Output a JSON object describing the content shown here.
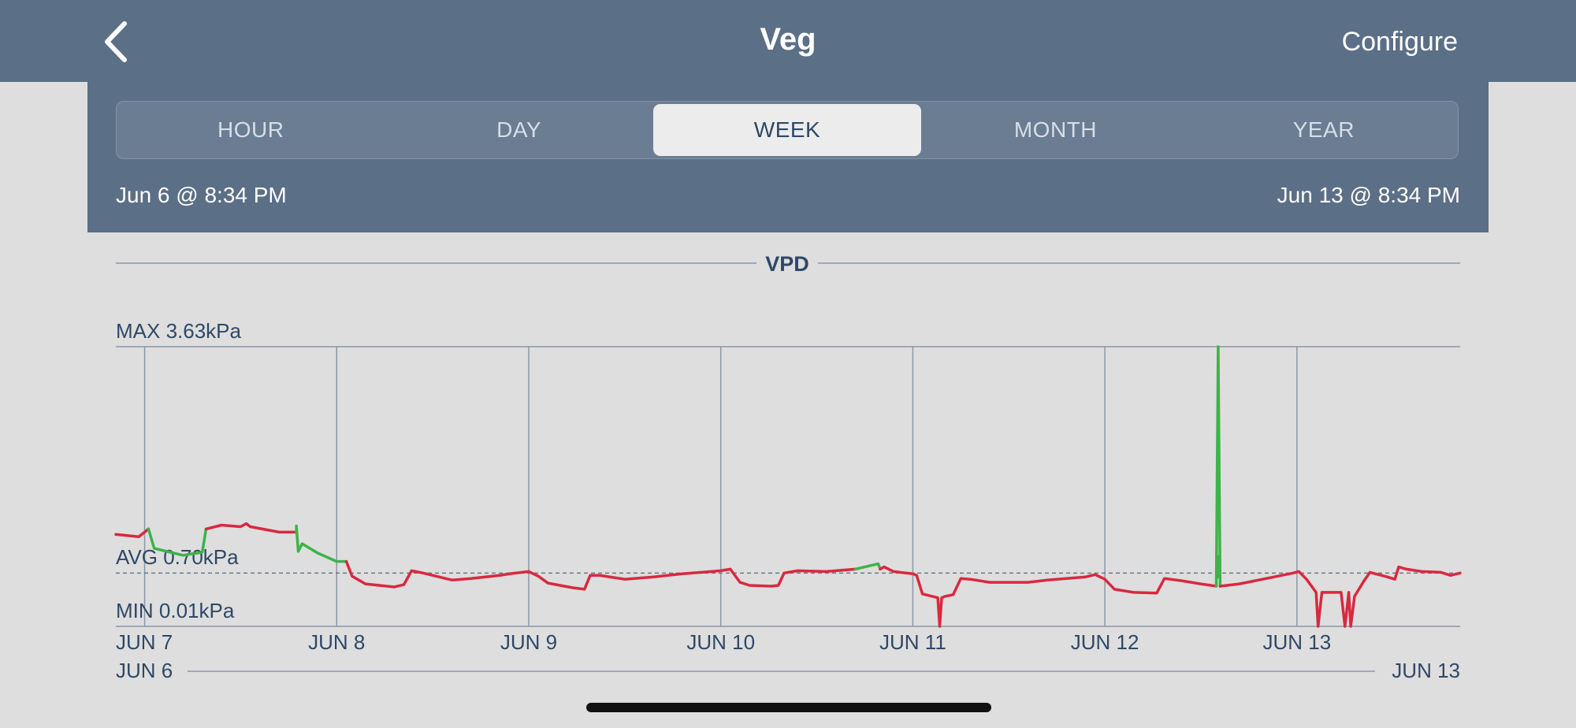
{
  "header": {
    "title": "Veg",
    "configure_label": "Configure",
    "back_icon": "chevron-left-icon"
  },
  "tabs": [
    {
      "label": "HOUR",
      "active": false
    },
    {
      "label": "DAY",
      "active": false
    },
    {
      "label": "WEEK",
      "active": true
    },
    {
      "label": "MONTH",
      "active": false
    },
    {
      "label": "YEAR",
      "active": false
    }
  ],
  "range": {
    "start": "Jun 6 @ 8:34 PM",
    "end": "Jun 13 @ 8:34 PM"
  },
  "colors": {
    "header_bg": "#5b6f86",
    "series_out_of_range": "#d8293f",
    "series_in_range": "#3db34a",
    "axis_text": "#2f4866"
  },
  "chart_data": {
    "type": "line",
    "title": "VPD",
    "unit": "kPa",
    "stats": {
      "max_label": "MAX 3.63kPa",
      "avg_label": "AVG 0.70kPa",
      "min_label": "MIN 0.01kPa",
      "max": 3.63,
      "avg": 0.7,
      "min": 0.01
    },
    "ylim": [
      0.01,
      3.63
    ],
    "xlim": [
      0,
      7
    ],
    "x_unit_note_days_since_jun6_2034": true,
    "tick_labels": [
      "JUN 7",
      "JUN 8",
      "JUN 9",
      "JUN 10",
      "JUN 11",
      "JUN 12",
      "JUN 13"
    ],
    "tick_positions": [
      0.15,
      1.15,
      2.15,
      3.15,
      4.15,
      5.15,
      6.15
    ],
    "overview": {
      "start_label": "JUN 6",
      "end_label": "JUN 13"
    },
    "series": [
      {
        "points": [
          [
            0.0,
            1.2
          ],
          [
            0.12,
            1.17
          ],
          [
            0.17,
            1.27
          ],
          [
            0.2,
            1.02
          ],
          [
            0.35,
            0.93
          ],
          [
            0.45,
            0.97
          ],
          [
            0.47,
            1.27
          ],
          [
            0.55,
            1.32
          ],
          [
            0.65,
            1.3
          ],
          [
            0.68,
            1.34
          ],
          [
            0.7,
            1.3
          ],
          [
            0.85,
            1.23
          ],
          [
            0.94,
            1.23
          ],
          [
            0.94,
            1.31
          ],
          [
            0.95,
            0.98
          ],
          [
            0.97,
            1.08
          ],
          [
            1.05,
            0.96
          ],
          [
            1.15,
            0.85
          ],
          [
            1.2,
            0.85
          ],
          [
            1.23,
            0.66
          ],
          [
            1.3,
            0.56
          ],
          [
            1.45,
            0.52
          ],
          [
            1.5,
            0.55
          ],
          [
            1.54,
            0.73
          ],
          [
            1.6,
            0.7
          ],
          [
            1.75,
            0.61
          ],
          [
            1.85,
            0.63
          ],
          [
            2.0,
            0.67
          ],
          [
            2.05,
            0.69
          ],
          [
            2.15,
            0.72
          ],
          [
            2.2,
            0.66
          ],
          [
            2.25,
            0.57
          ],
          [
            2.38,
            0.51
          ],
          [
            2.44,
            0.49
          ],
          [
            2.47,
            0.67
          ],
          [
            2.52,
            0.67
          ],
          [
            2.65,
            0.62
          ],
          [
            2.8,
            0.65
          ],
          [
            2.95,
            0.69
          ],
          [
            3.15,
            0.73
          ],
          [
            3.2,
            0.75
          ],
          [
            3.25,
            0.58
          ],
          [
            3.3,
            0.54
          ],
          [
            3.41,
            0.53
          ],
          [
            3.45,
            0.54
          ],
          [
            3.48,
            0.7
          ],
          [
            3.55,
            0.73
          ],
          [
            3.7,
            0.72
          ],
          [
            3.85,
            0.75
          ],
          [
            3.97,
            0.82
          ],
          [
            3.98,
            0.75
          ],
          [
            4.0,
            0.78
          ],
          [
            4.05,
            0.72
          ],
          [
            4.15,
            0.69
          ],
          [
            4.17,
            0.67
          ],
          [
            4.2,
            0.43
          ],
          [
            4.28,
            0.38
          ],
          [
            4.29,
            0.01
          ],
          [
            4.3,
            0.38
          ],
          [
            4.32,
            0.4
          ],
          [
            4.36,
            0.42
          ],
          [
            4.4,
            0.63
          ],
          [
            4.45,
            0.62
          ],
          [
            4.55,
            0.58
          ],
          [
            4.75,
            0.58
          ],
          [
            4.85,
            0.61
          ],
          [
            5.05,
            0.65
          ],
          [
            5.1,
            0.68
          ],
          [
            5.15,
            0.62
          ],
          [
            5.2,
            0.49
          ],
          [
            5.3,
            0.45
          ],
          [
            5.42,
            0.44
          ],
          [
            5.46,
            0.63
          ],
          [
            5.55,
            0.6
          ],
          [
            5.65,
            0.56
          ],
          [
            5.73,
            0.53
          ],
          [
            5.74,
            3.63
          ],
          [
            5.75,
            0.53
          ],
          [
            5.85,
            0.56
          ],
          [
            6.05,
            0.66
          ],
          [
            6.13,
            0.7
          ],
          [
            6.16,
            0.72
          ],
          [
            6.2,
            0.62
          ],
          [
            6.25,
            0.45
          ],
          [
            6.26,
            0.01
          ],
          [
            6.28,
            0.45
          ],
          [
            6.38,
            0.45
          ],
          [
            6.4,
            0.01
          ],
          [
            6.42,
            0.45
          ],
          [
            6.43,
            0.01
          ],
          [
            6.45,
            0.4
          ],
          [
            6.5,
            0.6
          ],
          [
            6.53,
            0.71
          ],
          [
            6.62,
            0.65
          ],
          [
            6.66,
            0.62
          ],
          [
            6.68,
            0.78
          ],
          [
            6.72,
            0.75
          ],
          [
            6.8,
            0.72
          ],
          [
            6.9,
            0.71
          ],
          [
            6.95,
            0.67
          ],
          [
            7.0,
            0.7
          ]
        ],
        "in_range_segments": [
          [
            0.17,
            0.47
          ],
          [
            0.94,
            1.2
          ],
          [
            3.85,
            3.98
          ],
          [
            5.73,
            5.75
          ]
        ]
      }
    ]
  }
}
